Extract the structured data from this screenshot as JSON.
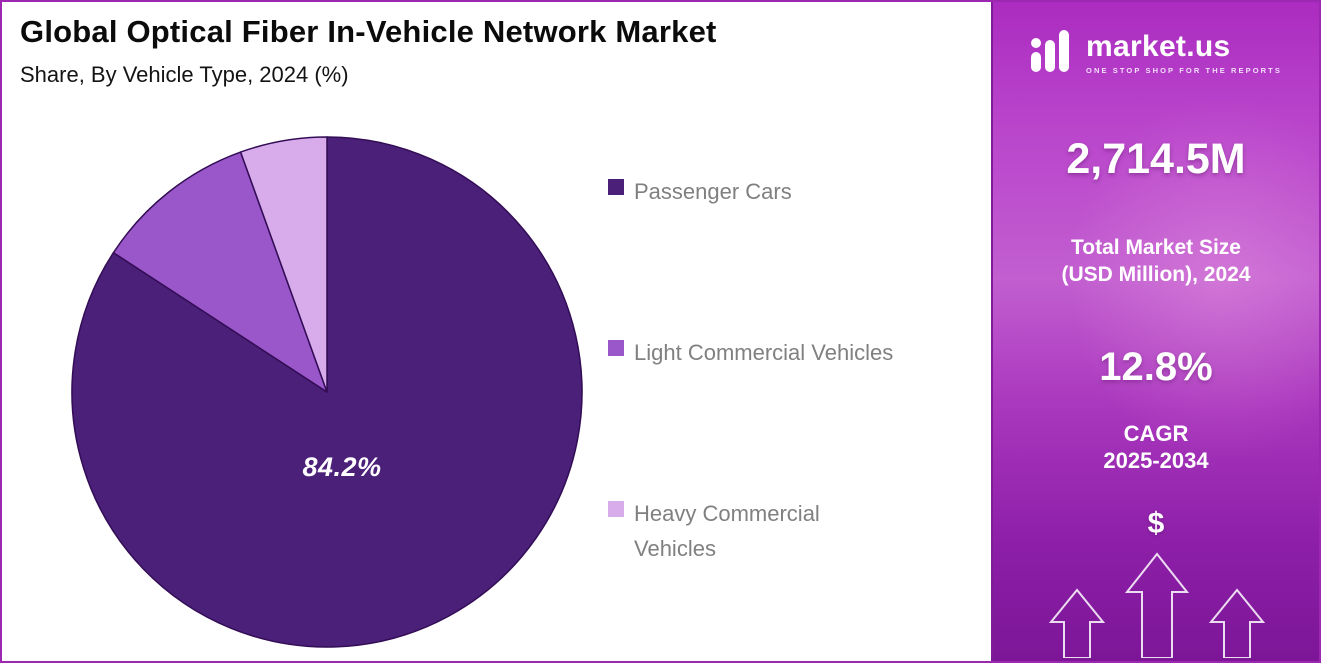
{
  "header": {
    "title": "Global Optical Fiber In-Vehicle Network Market",
    "subtitle": "Share, By Vehicle Type, 2024 (%)"
  },
  "chart_data": {
    "type": "pie",
    "title": "Global Optical Fiber In-Vehicle Network Market",
    "subtitle": "Share, By Vehicle Type, 2024 (%)",
    "unit": "%",
    "labels": [
      "Passenger Cars",
      "Light Commercial Vehicles",
      "Heavy Commercial Vehicles"
    ],
    "values": [
      84.2,
      10.3,
      5.5
    ],
    "colors": [
      "#4b2079",
      "#9a57c9",
      "#d8abeb"
    ],
    "slice_border_color": "#330d56",
    "data_labels": [
      "84.2%",
      "",
      ""
    ],
    "start_angle_deg": 0,
    "direction": "clockwise",
    "legend_position": "right"
  },
  "legend": {
    "items": [
      {
        "label": "Passenger Cars"
      },
      {
        "label": "Light Commercial Vehicles"
      },
      {
        "label": "Heavy Commercial\nVehicles"
      }
    ]
  },
  "sidebar": {
    "brand": {
      "name": "market.us",
      "tagline": "ONE STOP SHOP FOR THE REPORTS"
    },
    "market_size_value": "2,714.5M",
    "market_size_label": "Total Market Size\n(USD Million), 2024",
    "cagr_value": "12.8%",
    "cagr_label": "CAGR",
    "cagr_period": "2025-2034",
    "dollar_glyph": "$"
  }
}
